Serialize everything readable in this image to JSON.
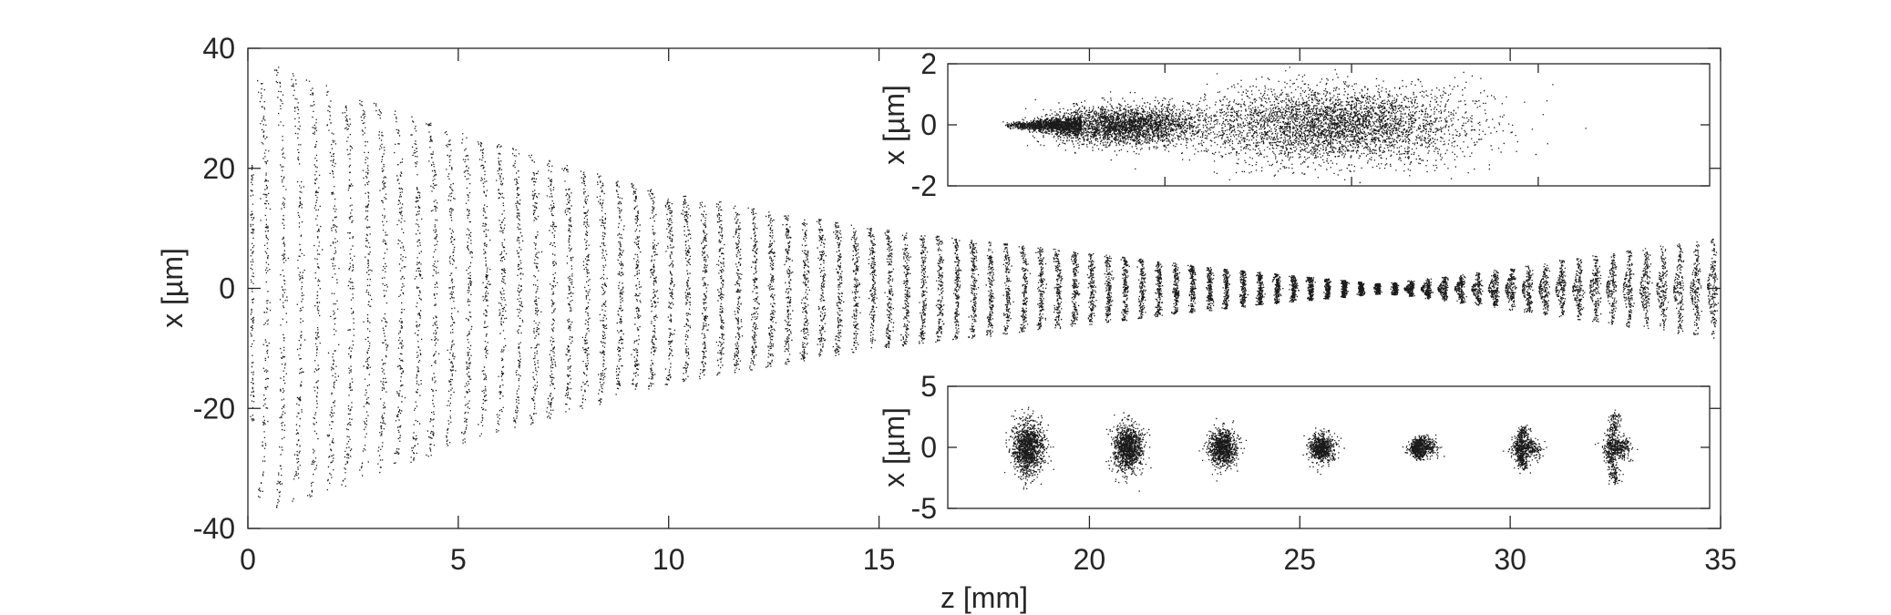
{
  "chart_data": [
    {
      "id": "main",
      "type": "scatter",
      "title": "",
      "xlabel": "z [mm]",
      "ylabel": "x [µm]",
      "xlim": [
        0,
        35
      ],
      "ylim": [
        -40,
        40
      ],
      "xticks": [
        0,
        5,
        10,
        15,
        20,
        25,
        30,
        35
      ],
      "yticks": [
        -40,
        -20,
        0,
        20,
        40
      ],
      "grid": false,
      "legend": "none",
      "point_color": "#1a1a1a",
      "series": [
        {
          "z_start": 0.45,
          "z_step": 0.4,
          "count": 87,
          "envelope_half_width": [
            [
              0.45,
              35
            ],
            [
              0.85,
              37
            ],
            [
              5,
              26.5
            ],
            [
              10,
              16
            ],
            [
              15,
              10
            ],
            [
              20,
              6
            ],
            [
              23,
              3.5
            ],
            [
              25,
              2.1
            ],
            [
              27,
              0.8
            ],
            [
              29,
              2.5
            ],
            [
              32,
              5.5
            ],
            [
              35,
              8.5
            ]
          ],
          "focus_z": 27
        }
      ]
    },
    {
      "id": "inset-top",
      "type": "scatter",
      "title": "",
      "xlabel": "",
      "ylabel": "x [µm]",
      "ylim": [
        -2,
        2
      ],
      "yticks": [
        -2,
        0,
        2
      ],
      "grid": false,
      "legend": "none",
      "point_color": "#1a1a1a"
    },
    {
      "id": "inset-bottom",
      "type": "scatter",
      "title": "",
      "xlabel": "",
      "ylabel": "x [µm]",
      "ylim": [
        -5,
        5
      ],
      "yticks": [
        -5,
        0,
        5
      ],
      "grid": false,
      "legend": "none",
      "point_color": "#1a1a1a"
    }
  ]
}
